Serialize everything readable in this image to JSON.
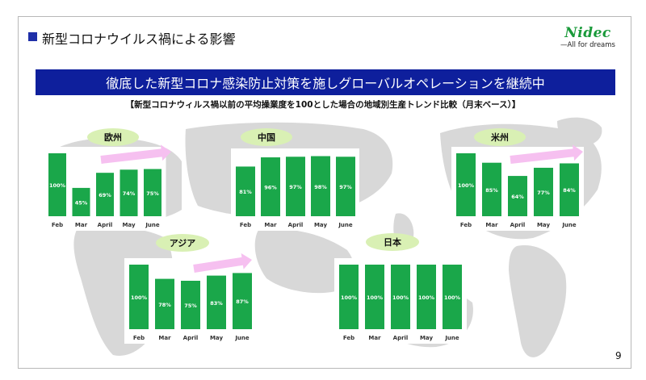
{
  "slide": {
    "title": "新型コロナウイルス禍による影響",
    "banner": "徹底した新型コロナ感染防止対策を施しグローバルオペレーションを継続中",
    "subtitle": "【新型コロナウィルス禍以前の平均操業度を100とした場合の地域別生産トレンド比較（月末ベース）】",
    "page_number": "9"
  },
  "logo": {
    "name": "Nidec",
    "tagline": "—All for dreams",
    "color": "#1a9a3a"
  },
  "colors": {
    "bar": "#1aa74a",
    "banner": "#0e1f9c",
    "label_bubble": "#d9f0b4",
    "arrow": "#f6c0f0",
    "map": "#d8d8d8"
  },
  "chart_data": [
    {
      "type": "bar",
      "title": "欧州",
      "categories": [
        "Feb",
        "Mar",
        "April",
        "May",
        "June"
      ],
      "values": [
        100,
        45,
        69,
        74,
        75
      ],
      "labels": [
        "100%",
        "45%",
        "69%",
        "74%",
        "75%"
      ],
      "ylim": [
        0,
        100
      ]
    },
    {
      "type": "bar",
      "title": "中国",
      "categories": [
        "Feb",
        "Mar",
        "April",
        "May",
        "June"
      ],
      "values": [
        81,
        96,
        97,
        98,
        97
      ],
      "labels": [
        "81%",
        "96%",
        "97%",
        "98%",
        "97%"
      ],
      "ylim": [
        0,
        100
      ]
    },
    {
      "type": "bar",
      "title": "米州",
      "categories": [
        "Feb",
        "Mar",
        "April",
        "May",
        "June"
      ],
      "values": [
        100,
        85,
        64,
        77,
        84
      ],
      "labels": [
        "100%",
        "85%",
        "64%",
        "77%",
        "84%"
      ],
      "ylim": [
        0,
        100
      ]
    },
    {
      "type": "bar",
      "title": "アジア",
      "categories": [
        "Feb",
        "Mar",
        "April",
        "May",
        "June"
      ],
      "values": [
        100,
        78,
        75,
        83,
        87
      ],
      "labels": [
        "100%",
        "78%",
        "75%",
        "83%",
        "87%"
      ],
      "ylim": [
        0,
        100
      ]
    },
    {
      "type": "bar",
      "title": "日本",
      "categories": [
        "Feb",
        "Mar",
        "April",
        "May",
        "June"
      ],
      "values": [
        100,
        100,
        100,
        100,
        100
      ],
      "labels": [
        "100%",
        "100%",
        "100%",
        "100%",
        "100%"
      ],
      "ylim": [
        0,
        100
      ]
    }
  ]
}
